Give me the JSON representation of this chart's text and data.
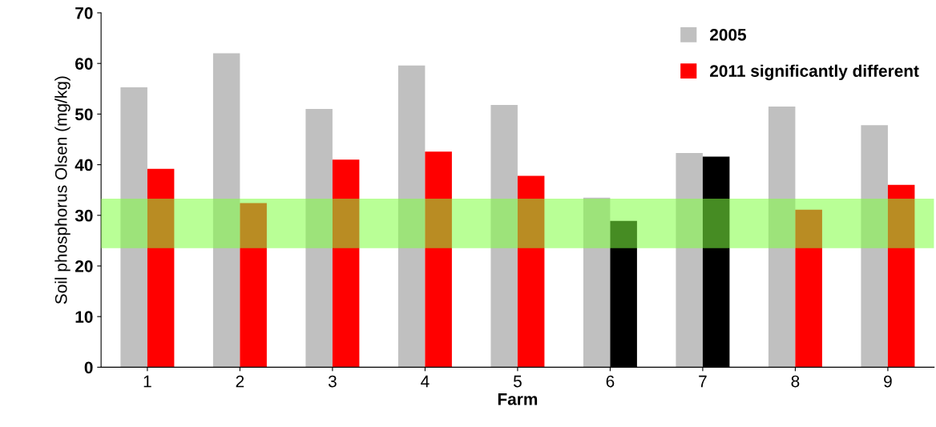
{
  "chart_data": {
    "type": "bar",
    "xlabel": "Farm",
    "ylabel": "Soil phosphorus Olsen (mg/kg)",
    "categories": [
      "1",
      "2",
      "3",
      "4",
      "5",
      "6",
      "7",
      "8",
      "9"
    ],
    "series": [
      {
        "name": "2005",
        "color": "#c0c0c0",
        "values": [
          55.3,
          62.0,
          51.0,
          59.6,
          51.8,
          33.5,
          42.3,
          51.5,
          47.8
        ]
      },
      {
        "name": "2011 significantly different",
        "color": "#ff0000",
        "colors": [
          "#ff0000",
          "#ff0000",
          "#ff0000",
          "#ff0000",
          "#ff0000",
          "#000000",
          "#000000",
          "#ff0000",
          "#ff0000"
        ],
        "values": [
          39.2,
          32.4,
          41.0,
          42.6,
          37.8,
          28.9,
          41.6,
          31.1,
          36.0
        ]
      }
    ],
    "bands": [
      {
        "axis": "y",
        "from": 23.5,
        "to": 33.3,
        "color": "#80ff40"
      }
    ],
    "ylim": [
      0,
      70
    ],
    "yticks": [
      0,
      10,
      20,
      30,
      40,
      50,
      60,
      70
    ],
    "grid": false,
    "legend": "top right"
  }
}
